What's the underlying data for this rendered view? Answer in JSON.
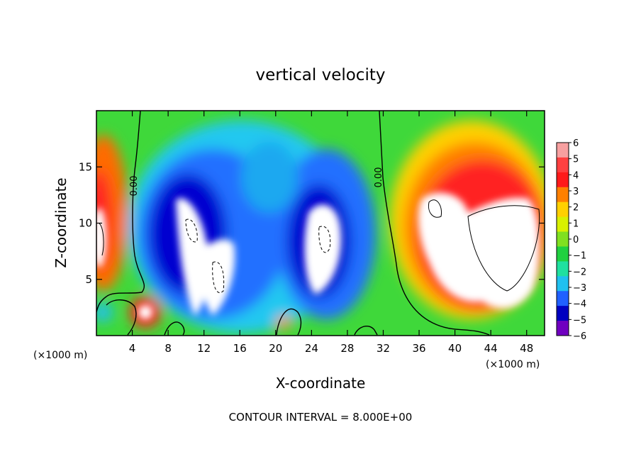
{
  "chart_data": {
    "type": "heatmap",
    "title": "vertical velocity",
    "xlabel": "X-coordinate",
    "ylabel": "Z-coordinate",
    "x_unit_label": "(×1000 m)",
    "y_unit_label": "(×1000 m)",
    "xlim": [
      0,
      50
    ],
    "ylim": [
      0,
      20
    ],
    "x_ticks": [
      4,
      8,
      12,
      16,
      20,
      24,
      28,
      32,
      36,
      40,
      44,
      48
    ],
    "y_ticks": [
      5,
      10,
      15
    ],
    "colorbar": {
      "ticks": [
        6,
        5,
        4,
        3,
        2,
        1,
        0,
        -1,
        -2,
        -3,
        -4,
        -5,
        -6
      ],
      "colors": [
        "#f7a0a0",
        "#ff4040",
        "#ff1a1a",
        "#ff8000",
        "#ffd000",
        "#d8f000",
        "#80e020",
        "#20d040",
        "#20e0a0",
        "#20c0f0",
        "#2060ff",
        "#0000c0",
        "#7000c0"
      ]
    },
    "contour_label": "0.00",
    "contour_interval_text": "CONTOUR INTERVAL = 8.000E+00",
    "features": [
      {
        "kind": "updraft-core",
        "x": 10.5,
        "z": 10
      },
      {
        "kind": "downdraft-region",
        "x": 12,
        "z": 9
      },
      {
        "kind": "downdraft-region",
        "x": 24,
        "z": 10
      },
      {
        "kind": "updraft-core",
        "x": 25.5,
        "z": 8
      },
      {
        "kind": "updraft-region",
        "x": 44,
        "z": 9
      },
      {
        "kind": "updraft-region",
        "x": 2,
        "z": 10
      },
      {
        "kind": "updraft-cell",
        "x": 5.3,
        "z": 2
      }
    ]
  }
}
